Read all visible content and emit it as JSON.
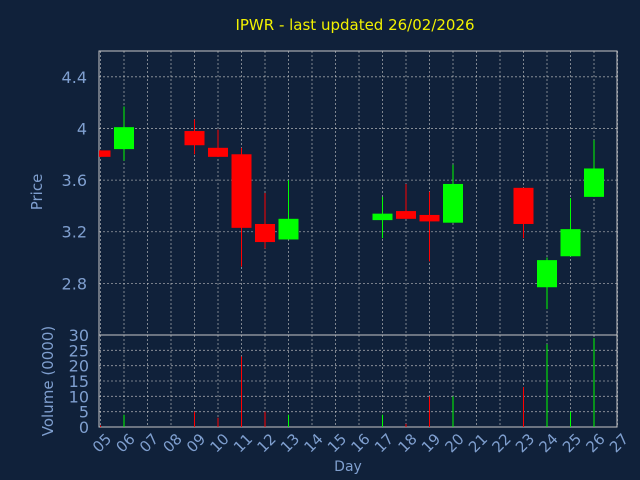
{
  "colors": {
    "background": "#10213a",
    "plot_border": "#c8c8c8",
    "grid": "#c8c8c8",
    "title": "#f2f200",
    "axis_text": "#7f9fcf",
    "up": "#00ff00",
    "down": "#ff0000",
    "volume_up": "#00ff00",
    "volume_down": "#ff0000"
  },
  "chart_data": [
    {
      "type": "candlestick",
      "title": "IPWR - last updated 26/02/2026",
      "ylabel": "Price",
      "ylim": [
        2.4,
        4.6
      ],
      "yticks": [
        "2.8",
        "3.2",
        "3.6",
        "4",
        "4.4"
      ],
      "ytick_values": [
        2.8,
        3.2,
        3.6,
        4.0,
        4.4
      ],
      "grid": true,
      "candles": [
        {
          "day": "05",
          "open": 3.83,
          "high": 3.83,
          "low": 3.78,
          "close": 3.78
        },
        {
          "day": "06",
          "open": 3.84,
          "high": 4.17,
          "low": 3.75,
          "close": 4.01
        },
        {
          "day": "09",
          "open": 3.98,
          "high": 4.07,
          "low": 3.8,
          "close": 3.87
        },
        {
          "day": "10",
          "open": 3.85,
          "high": 3.99,
          "low": 3.78,
          "close": 3.78
        },
        {
          "day": "11",
          "open": 3.8,
          "high": 3.85,
          "low": 2.93,
          "close": 3.23
        },
        {
          "day": "12",
          "open": 3.26,
          "high": 3.5,
          "low": 3.07,
          "close": 3.12
        },
        {
          "day": "13",
          "open": 3.14,
          "high": 3.6,
          "low": 3.14,
          "close": 3.3
        },
        {
          "day": "17",
          "open": 3.29,
          "high": 3.47,
          "low": 3.15,
          "close": 3.34
        },
        {
          "day": "18",
          "open": 3.36,
          "high": 3.57,
          "low": 3.3,
          "close": 3.3
        },
        {
          "day": "19",
          "open": 3.33,
          "high": 3.51,
          "low": 2.97,
          "close": 3.28
        },
        {
          "day": "20",
          "open": 3.27,
          "high": 3.72,
          "low": 3.27,
          "close": 3.57
        },
        {
          "day": "23",
          "open": 3.54,
          "high": 3.54,
          "low": 3.15,
          "close": 3.26
        },
        {
          "day": "24",
          "open": 2.77,
          "high": 3.0,
          "low": 2.6,
          "close": 2.98
        },
        {
          "day": "25",
          "open": 3.01,
          "high": 3.46,
          "low": 3.01,
          "close": 3.22
        },
        {
          "day": "26",
          "open": 3.47,
          "high": 3.91,
          "low": 3.47,
          "close": 3.69
        }
      ]
    },
    {
      "type": "bar",
      "ylabel": "Volume (0000)",
      "xlabel": "Day",
      "ylim": [
        0,
        30
      ],
      "yticks": [
        "0",
        "5",
        "10",
        "15",
        "20",
        "25",
        "30"
      ],
      "ytick_values": [
        0,
        5,
        10,
        15,
        20,
        25,
        30
      ],
      "categories": [
        "05",
        "06",
        "07",
        "08",
        "09",
        "10",
        "11",
        "12",
        "13",
        "14",
        "15",
        "16",
        "17",
        "18",
        "19",
        "20",
        "21",
        "22",
        "23",
        "24",
        "25",
        "26",
        "27"
      ],
      "volumes": [
        {
          "day": "05",
          "value": 0.5,
          "direction": "down"
        },
        {
          "day": "06",
          "value": 4,
          "direction": "up"
        },
        {
          "day": "09",
          "value": 5,
          "direction": "down"
        },
        {
          "day": "10",
          "value": 3,
          "direction": "down"
        },
        {
          "day": "11",
          "value": 23,
          "direction": "down"
        },
        {
          "day": "12",
          "value": 5,
          "direction": "down"
        },
        {
          "day": "13",
          "value": 4,
          "direction": "up"
        },
        {
          "day": "17",
          "value": 4,
          "direction": "up"
        },
        {
          "day": "18",
          "value": 1,
          "direction": "down"
        },
        {
          "day": "19",
          "value": 10,
          "direction": "down"
        },
        {
          "day": "20",
          "value": 10,
          "direction": "up"
        },
        {
          "day": "23",
          "value": 13,
          "direction": "down"
        },
        {
          "day": "24",
          "value": 27,
          "direction": "up"
        },
        {
          "day": "25",
          "value": 5,
          "direction": "up"
        },
        {
          "day": "26",
          "value": 29,
          "direction": "up"
        }
      ]
    }
  ]
}
